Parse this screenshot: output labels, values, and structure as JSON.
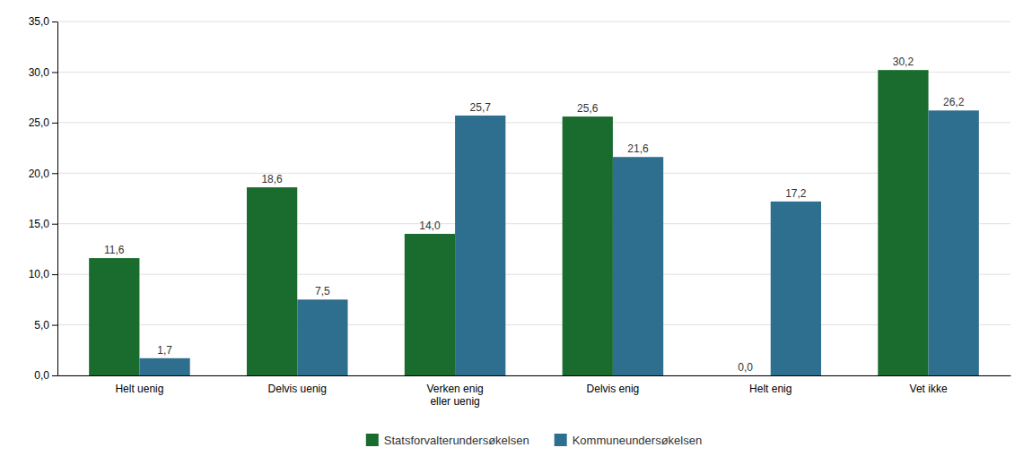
{
  "chart_data": {
    "type": "bar",
    "categories": [
      "Helt uenig",
      "Delvis uenig",
      "Verken enig\neller uenig",
      "Delvis enig",
      "Helt enig",
      "Vet ikke"
    ],
    "series": [
      {
        "name": "Statsforvalterundersøkelsen",
        "color": "#1a6b2e",
        "values": [
          11.6,
          18.6,
          14.0,
          25.6,
          0.0,
          30.2
        ],
        "value_labels": [
          "11,6",
          "18,6",
          "14,0",
          "25,6",
          "0,0",
          "30,2"
        ]
      },
      {
        "name": "Kommuneundersøkelsen",
        "color": "#2e6e8e",
        "values": [
          1.7,
          7.5,
          25.7,
          21.6,
          17.2,
          26.2
        ],
        "value_labels": [
          "1,7",
          "7,5",
          "25,7",
          "21,6",
          "17,2",
          "26,2"
        ]
      }
    ],
    "ylim": [
      0,
      35
    ],
    "yticks": [
      {
        "value": 0.0,
        "label": "0,0"
      },
      {
        "value": 5.0,
        "label": "5,0"
      },
      {
        "value": 10.0,
        "label": "10,0"
      },
      {
        "value": 15.0,
        "label": "15,0"
      },
      {
        "value": 20.0,
        "label": "20,0"
      },
      {
        "value": 25.0,
        "label": "25,0"
      },
      {
        "value": 30.0,
        "label": "30,0"
      },
      {
        "value": 35.0,
        "label": "35,0"
      }
    ],
    "grid": true,
    "data_labels": true,
    "legend": "bottom"
  }
}
